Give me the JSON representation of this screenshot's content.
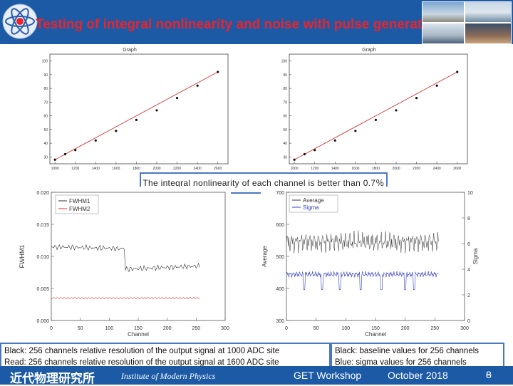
{
  "header": {
    "title": "Testing of integral nonlinearity and noise with pulse generator"
  },
  "top_left_chart": {
    "title": "Graph",
    "x_ticks": [
      "1000",
      "1200",
      "1400",
      "1600",
      "1800",
      "2000",
      "2200",
      "2400",
      "2600"
    ],
    "y_ticks": [
      "30",
      "40",
      "50",
      "60",
      "70",
      "80",
      "90",
      "100"
    ]
  },
  "top_right_chart": {
    "title": "Graph",
    "x_ticks": [
      "1000",
      "1200",
      "1400",
      "1600",
      "1800",
      "2000",
      "2200",
      "2400",
      "2600"
    ],
    "y_ticks": [
      "30",
      "40",
      "50",
      "60",
      "70",
      "80",
      "90",
      "100"
    ]
  },
  "note": "The integral nonlinearity of each channel is better than 0.7％",
  "fwhm_chart": {
    "legend": [
      "FWHM1",
      "FWHM2"
    ],
    "xlabel": "Channel",
    "ylabel": "FWHM1",
    "x_ticks": [
      "0",
      "50",
      "100",
      "150",
      "200",
      "250",
      "300"
    ],
    "y_ticks": [
      "0.000",
      "0.005",
      "0.010",
      "0.015",
      "0.020"
    ]
  },
  "avg_chart": {
    "legend": [
      "Average",
      "Sigma"
    ],
    "xlabel": "Channel",
    "ylabel_left": "Average",
    "ylabel_right": "Sigma",
    "x_ticks": [
      "0",
      "50",
      "100",
      "150",
      "200",
      "250",
      "300"
    ],
    "y_left_ticks": [
      "300",
      "400",
      "500",
      "600",
      "700"
    ],
    "y_right_ticks": [
      "0",
      "2",
      "4",
      "6",
      "8",
      "10"
    ]
  },
  "captions": {
    "left_line1": "Black: 256 channels relative resolution of the output signal at 1000 ADC site",
    "left_line2": "Read: 256 channels relative resolution of the output signal at 1600 ADC site",
    "right_line1": "Black: baseline values for 256 channels",
    "right_line2": "Blue: sigma values for 256 channels"
  },
  "footer": {
    "institute_cn": "近代物理研究所",
    "institute_en": "Institute of Modern Physics",
    "event": "GET Workshop",
    "date": "October 2018",
    "page": "8"
  },
  "chart_data": [
    {
      "type": "scatter",
      "title": "Graph",
      "x": [
        1000,
        1100,
        1200,
        1400,
        1600,
        1800,
        2000,
        2200,
        2400,
        2600
      ],
      "y": [
        28,
        32,
        35,
        42,
        49,
        57,
        64,
        73,
        82,
        92
      ],
      "xlim": [
        950,
        2700
      ],
      "ylim": [
        25,
        105
      ],
      "fit_line": true
    },
    {
      "type": "scatter",
      "title": "Graph",
      "x": [
        1000,
        1100,
        1200,
        1400,
        1600,
        1800,
        2000,
        2200,
        2400,
        2600
      ],
      "y": [
        28,
        32,
        35,
        42,
        49,
        57,
        64,
        73,
        82,
        92
      ],
      "xlim": [
        950,
        2700
      ],
      "ylim": [
        25,
        105
      ],
      "fit_line": true
    },
    {
      "type": "line",
      "xlabel": "Channel",
      "ylabel": "FWHM1",
      "xlim": [
        0,
        300
      ],
      "ylim": [
        0,
        0.02
      ],
      "series": [
        {
          "name": "FWHM1",
          "x": [
            0,
            128,
            128,
            256
          ],
          "y": [
            0.0115,
            0.0112,
            0.008,
            0.0085
          ]
        },
        {
          "name": "FWHM2",
          "x": [
            0,
            256
          ],
          "y": [
            0.0035,
            0.0035
          ]
        }
      ]
    },
    {
      "type": "line",
      "xlabel": "Channel",
      "ylabel": "Average",
      "y2label": "Sigma",
      "xlim": [
        0,
        300
      ],
      "ylim": [
        300,
        700
      ],
      "y2lim": [
        0,
        10
      ],
      "series": [
        {
          "name": "Average",
          "x": [
            0,
            256
          ],
          "y": [
            545,
            545
          ]
        },
        {
          "name": "Sigma",
          "axis": "right",
          "x": [
            0,
            256
          ],
          "y": [
            3.6,
            3.6
          ]
        }
      ]
    }
  ]
}
